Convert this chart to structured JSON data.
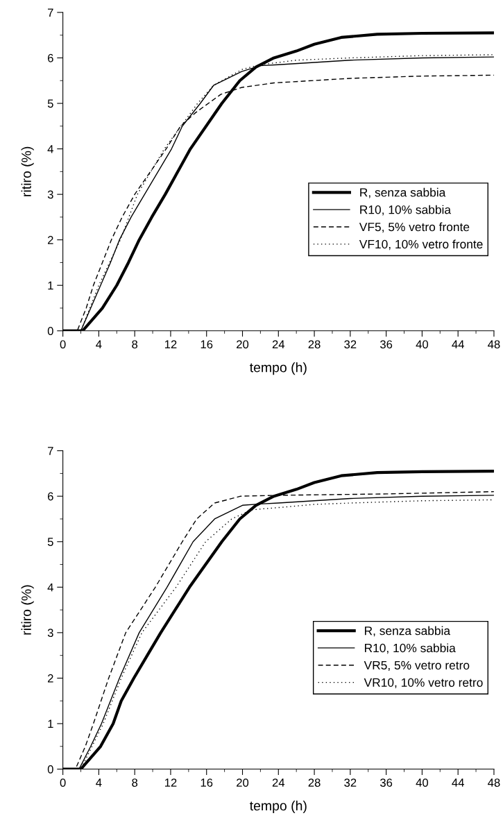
{
  "chart_data": [
    {
      "type": "line",
      "xlabel": "tempo (h)",
      "ylabel": "ritiro (%)",
      "xlim": [
        0,
        48
      ],
      "ylim": [
        0,
        7
      ],
      "xticks": [
        0,
        4,
        8,
        12,
        16,
        20,
        24,
        28,
        32,
        36,
        40,
        44,
        48
      ],
      "yticks": [
        0,
        1,
        2,
        3,
        4,
        5,
        6,
        7
      ],
      "grid": false,
      "legend": "right",
      "marker": "none",
      "series": [
        {
          "name": "R, senza sabbia",
          "color": "#000000",
          "line_style": "solid",
          "x": [
            0,
            2.2,
            4.4,
            6.0,
            7.3,
            8.5,
            9.9,
            11.4,
            14.2,
            17.7,
            19.7,
            21.5,
            23.5,
            26,
            28,
            31,
            35,
            40,
            48
          ],
          "values": [
            0,
            0,
            0.5,
            1,
            1.5,
            2,
            2.5,
            3,
            4,
            5,
            5.5,
            5.8,
            6,
            6.15,
            6.3,
            6.45,
            6.52,
            6.54,
            6.55
          ]
        },
        {
          "name": "R10, 10% sabbia",
          "color": "#000000",
          "line_style": "solid",
          "x": [
            0,
            2.0,
            3.1,
            4.2,
            5.3,
            6.3,
            7.6,
            9.1,
            12.1,
            13.3,
            15.3,
            16.8,
            19.9,
            22,
            24,
            28,
            32,
            40,
            48
          ],
          "values": [
            0,
            0,
            0.5,
            1,
            1.5,
            2,
            2.5,
            3,
            4,
            4.5,
            5,
            5.4,
            5.7,
            5.83,
            5.85,
            5.9,
            5.95,
            6.0,
            6.02
          ]
        },
        {
          "name": "VF5, 5% vetro fronte",
          "color": "#000000",
          "line_style": "dashed",
          "x": [
            0,
            1.6,
            2.6,
            3.4,
            4.4,
            5.4,
            6.6,
            8.0,
            11.5,
            13.1,
            14.8,
            17.6,
            19.9,
            23.5,
            32,
            40,
            48
          ],
          "values": [
            0,
            0,
            0.5,
            1,
            1.5,
            2,
            2.5,
            3,
            4,
            4.5,
            4.8,
            5.2,
            5.35,
            5.45,
            5.55,
            5.6,
            5.62
          ]
        },
        {
          "name": "VF10, 10% vetro fronte",
          "color": "#000000",
          "line_style": "dotted",
          "x": [
            0,
            2.0,
            4.0,
            6.4,
            8.3,
            11.3,
            15.0,
            16.8,
            20,
            22,
            26,
            32,
            40,
            48
          ],
          "values": [
            0,
            0,
            1,
            2,
            3,
            4,
            5,
            5.4,
            5.75,
            5.85,
            5.95,
            6.0,
            6.05,
            6.07
          ]
        }
      ]
    },
    {
      "type": "line",
      "xlabel": "tempo (h)",
      "ylabel": "ritiro (%)",
      "xlim": [
        0,
        48
      ],
      "ylim": [
        0,
        7
      ],
      "xticks": [
        0,
        4,
        8,
        12,
        16,
        20,
        24,
        28,
        32,
        36,
        40,
        44,
        48
      ],
      "yticks": [
        0,
        1,
        2,
        3,
        4,
        5,
        6,
        7
      ],
      "grid": false,
      "legend": "right",
      "marker": "none",
      "series": [
        {
          "name": "R, senza sabbia",
          "color": "#000000",
          "line_style": "solid",
          "x": [
            0,
            2.0,
            4.2,
            5.6,
            6.5,
            7.9,
            9.4,
            10.9,
            14.1,
            17.7,
            19.7,
            21.5,
            23.5,
            26,
            28,
            31,
            35,
            40,
            48
          ],
          "values": [
            0,
            0,
            0.5,
            1,
            1.5,
            2,
            2.5,
            3,
            4,
            5,
            5.5,
            5.8,
            6,
            6.15,
            6.3,
            6.45,
            6.52,
            6.54,
            6.55
          ]
        },
        {
          "name": "R10, 10% sabbia",
          "color": "#000000",
          "line_style": "solid",
          "x": [
            0,
            1.8,
            3.1,
            4.3,
            6.3,
            8.5,
            11.6,
            14.5,
            16.9,
            20,
            22,
            24,
            28,
            32,
            40,
            48
          ],
          "values": [
            0,
            0,
            0.5,
            1,
            2,
            3,
            4,
            5,
            5.5,
            5.8,
            5.83,
            5.85,
            5.9,
            5.95,
            6.0,
            6.02
          ]
        },
        {
          "name": "VR5, 5% vetro retro",
          "color": "#000000",
          "line_style": "dashed",
          "x": [
            0,
            1.4,
            2.5,
            3.4,
            5.1,
            7.0,
            10.3,
            13.3,
            14.9,
            16.9,
            19.8,
            24,
            36,
            48
          ],
          "values": [
            0,
            0,
            0.5,
            1,
            2,
            3,
            4,
            5,
            5.5,
            5.85,
            6.0,
            6.02,
            6.05,
            6.1
          ]
        },
        {
          "name": "VR10, 10% vetro retro",
          "color": "#000000",
          "line_style": "dotted",
          "x": [
            0,
            2,
            4.5,
            6.5,
            8.8,
            12.6,
            15.9,
            18.8,
            21,
            24,
            28,
            32,
            40,
            48
          ],
          "values": [
            0,
            0,
            1,
            2,
            3,
            4,
            5,
            5.5,
            5.7,
            5.75,
            5.82,
            5.85,
            5.9,
            5.92
          ]
        }
      ]
    }
  ]
}
